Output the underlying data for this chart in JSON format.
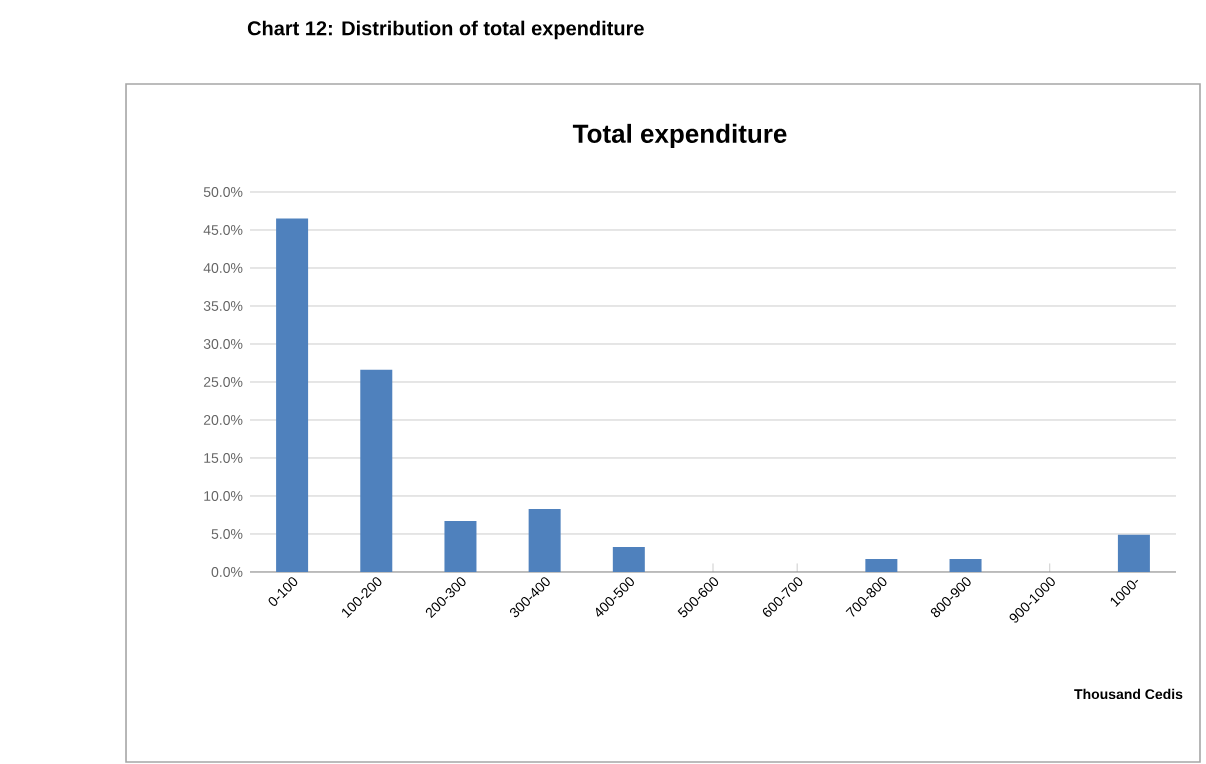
{
  "chart_data": {
    "type": "bar",
    "title": "Chart 12: Distribution of total expenditure",
    "subtitle": "Total expenditure",
    "xlabel": "Thousand Cedis",
    "categories": [
      "0-100",
      "100-200",
      "200-300",
      "300-400",
      "400-500",
      "500-600",
      "600-700",
      "700-800",
      "800-900",
      "900-1000",
      "1000-"
    ],
    "values": [
      46.5,
      26.6,
      6.7,
      8.3,
      3.3,
      0,
      0,
      1.7,
      1.7,
      0,
      4.9
    ],
    "color": "#4f81bd",
    "ylim": [
      0,
      50
    ],
    "yticks": [
      {
        "value": 0,
        "label": "0.0%"
      },
      {
        "value": 5,
        "label": "5.0%"
      },
      {
        "value": 10,
        "label": "10.0%"
      },
      {
        "value": 15,
        "label": "15.0%"
      },
      {
        "value": 20,
        "label": "20.0%"
      },
      {
        "value": 25,
        "label": "25.0%"
      },
      {
        "value": 30,
        "label": "30.0%"
      },
      {
        "value": 35,
        "label": "35.0%"
      },
      {
        "value": 40,
        "label": "40.0%"
      },
      {
        "value": 45,
        "label": "45.0%"
      },
      {
        "value": 50,
        "label": "50.0%"
      }
    ],
    "grid": "y"
  }
}
